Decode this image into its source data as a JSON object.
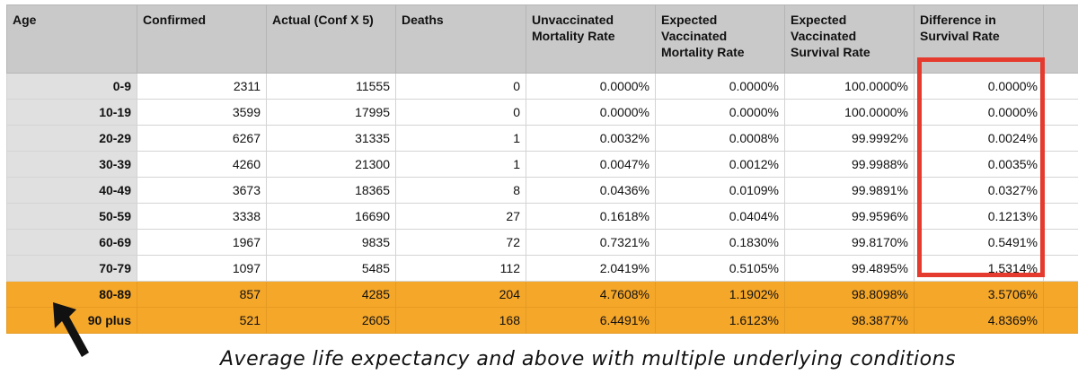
{
  "table": {
    "headers": [
      "Age",
      "Confirmed",
      "Actual (Conf X 5)",
      "Deaths",
      "Unvaccinated Mortality Rate",
      "Expected Vaccinated Mortality Rate",
      "Expected Vaccinated Survival Rate",
      "Difference in Survival Rate",
      ""
    ],
    "rows": [
      {
        "age": "0-9",
        "confirmed": "2311",
        "actual": "11555",
        "deaths": "0",
        "unvax_mortality": "0.0000%",
        "vax_mortality": "0.0000%",
        "vax_survival": "100.0000%",
        "difference": "0.0000%"
      },
      {
        "age": "10-19",
        "confirmed": "3599",
        "actual": "17995",
        "deaths": "0",
        "unvax_mortality": "0.0000%",
        "vax_mortality": "0.0000%",
        "vax_survival": "100.0000%",
        "difference": "0.0000%"
      },
      {
        "age": "20-29",
        "confirmed": "6267",
        "actual": "31335",
        "deaths": "1",
        "unvax_mortality": "0.0032%",
        "vax_mortality": "0.0008%",
        "vax_survival": "99.9992%",
        "difference": "0.0024%"
      },
      {
        "age": "30-39",
        "confirmed": "4260",
        "actual": "21300",
        "deaths": "1",
        "unvax_mortality": "0.0047%",
        "vax_mortality": "0.0012%",
        "vax_survival": "99.9988%",
        "difference": "0.0035%"
      },
      {
        "age": "40-49",
        "confirmed": "3673",
        "actual": "18365",
        "deaths": "8",
        "unvax_mortality": "0.0436%",
        "vax_mortality": "0.0109%",
        "vax_survival": "99.9891%",
        "difference": "0.0327%"
      },
      {
        "age": "50-59",
        "confirmed": "3338",
        "actual": "16690",
        "deaths": "27",
        "unvax_mortality": "0.1618%",
        "vax_mortality": "0.0404%",
        "vax_survival": "99.9596%",
        "difference": "0.1213%"
      },
      {
        "age": "60-69",
        "confirmed": "1967",
        "actual": "9835",
        "deaths": "72",
        "unvax_mortality": "0.7321%",
        "vax_mortality": "0.1830%",
        "vax_survival": "99.8170%",
        "difference": "0.5491%"
      },
      {
        "age": "70-79",
        "confirmed": "1097",
        "actual": "5485",
        "deaths": "112",
        "unvax_mortality": "2.0419%",
        "vax_mortality": "0.5105%",
        "vax_survival": "99.4895%",
        "difference": "1.5314%"
      },
      {
        "age": "80-89",
        "confirmed": "857",
        "actual": "4285",
        "deaths": "204",
        "unvax_mortality": "4.7608%",
        "vax_mortality": "1.1902%",
        "vax_survival": "98.8098%",
        "difference": "3.5706%",
        "highlighted": true
      },
      {
        "age": "90 plus",
        "confirmed": "521",
        "actual": "2605",
        "deaths": "168",
        "unvax_mortality": "6.4491%",
        "vax_mortality": "1.6123%",
        "vax_survival": "98.3877%",
        "difference": "4.8369%",
        "highlighted": true
      }
    ]
  },
  "annotation": {
    "text": "Average life expectancy and above with multiple underlying conditions"
  },
  "colors": {
    "header_bg": "#c9c9c9",
    "age_col_bg": "#e0e0e0",
    "highlight_row": "#f5a72a",
    "highlight_box": "#e53b2e"
  }
}
